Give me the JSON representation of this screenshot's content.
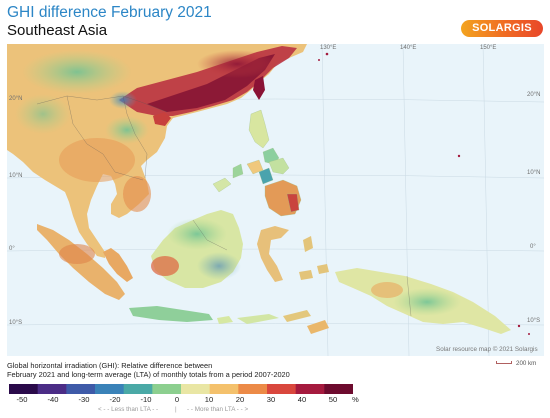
{
  "header": {
    "title": "GHI difference February 2021",
    "subtitle": "Southeast Asia",
    "logo_text": "SOLARGIS"
  },
  "map": {
    "longitude_labels": [
      "130°E",
      "140°E",
      "150°E"
    ],
    "latitude_labels": [
      "20°N",
      "10°N",
      "0°",
      "10°S"
    ],
    "credit": "Solar resource map © 2021 Solargis",
    "scale_label": "200 km"
  },
  "legend": {
    "description_line1": "Global horizontal irradiation (GHI): Relative difference between",
    "description_line2": "February 2021 and long-term average (LTA) of monthly totals from a period 2007-2020",
    "ticks": [
      "-50",
      "-40",
      "-30",
      "-20",
      "-10",
      "0",
      "10",
      "20",
      "30",
      "40",
      "50"
    ],
    "unit": "%",
    "less_label": "< - - Less than LTA - -",
    "divider": "|",
    "more_label": "- - More than LTA - - >",
    "colors": [
      "#2a0a4a",
      "#4b2c86",
      "#3e5aa8",
      "#3a82b8",
      "#4aa9a6",
      "#8ccf8f",
      "#e9e6a4",
      "#f4c16c",
      "#ec8a47",
      "#d9473d",
      "#a51a3e",
      "#6d0b2e"
    ]
  }
}
